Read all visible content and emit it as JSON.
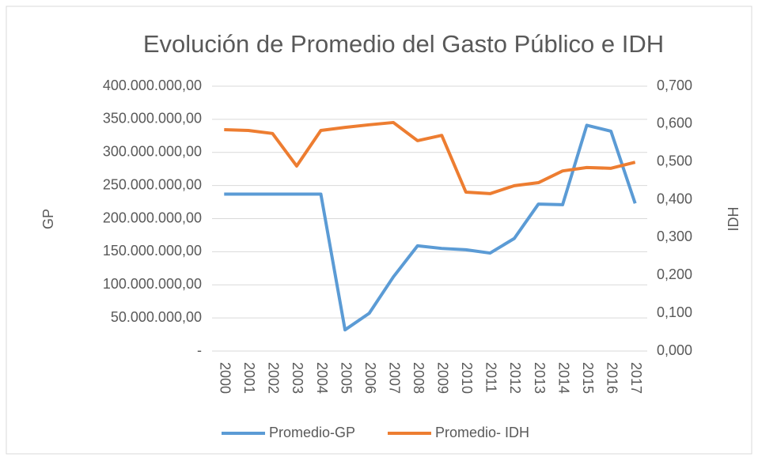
{
  "chart_data": {
    "type": "line",
    "title": "Evolución de Promedio del Gasto Público e IDH",
    "y_label": "GP",
    "y2_label": "IDH",
    "categories": [
      "2000",
      "2001",
      "2002",
      "2003",
      "2004",
      "2005",
      "2006",
      "2007",
      "2008",
      "2009",
      "2010",
      "2011",
      "2012",
      "2013",
      "2014",
      "2015",
      "2016",
      "2017"
    ],
    "series": [
      {
        "name": "Promedio-GP",
        "color": "#5b9bd5",
        "axis": "y",
        "values": [
          237000000,
          237000000,
          237000000,
          237000000,
          237000000,
          32000000,
          57000000,
          112000000,
          159000000,
          155000000,
          153000000,
          148000000,
          170000000,
          222000000,
          221000000,
          341000000,
          332000000,
          223000000
        ]
      },
      {
        "name": "Promedio- IDH",
        "color": "#ed7d31",
        "axis": "y2",
        "values": [
          0.585,
          0.583,
          0.575,
          0.489,
          0.583,
          0.591,
          0.598,
          0.604,
          0.556,
          0.57,
          0.42,
          0.416,
          0.437,
          0.445,
          0.476,
          0.485,
          0.483,
          0.499
        ]
      }
    ],
    "ylim": [
      0,
      400000000
    ],
    "yticks": [
      {
        "value": 0,
        "label": "-"
      },
      {
        "value": 50000000,
        "label": "50.000.000,00"
      },
      {
        "value": 100000000,
        "label": "100.000.000,00"
      },
      {
        "value": 150000000,
        "label": "150.000.000,00"
      },
      {
        "value": 200000000,
        "label": "200.000.000,00"
      },
      {
        "value": 250000000,
        "label": "250.000.000,00"
      },
      {
        "value": 300000000,
        "label": "300.000.000,00"
      },
      {
        "value": 350000000,
        "label": "350.000.000,00"
      },
      {
        "value": 400000000,
        "label": "400.000.000,00"
      }
    ],
    "y2lim": [
      0,
      0.7
    ],
    "y2ticks": [
      {
        "value": 0,
        "label": "0,000"
      },
      {
        "value": 0.1,
        "label": "0,100"
      },
      {
        "value": 0.2,
        "label": "0,200"
      },
      {
        "value": 0.3,
        "label": "0,300"
      },
      {
        "value": 0.4,
        "label": "0,400"
      },
      {
        "value": 0.5,
        "label": "0,500"
      },
      {
        "value": 0.6,
        "label": "0,600"
      },
      {
        "value": 0.7,
        "label": "0,700"
      }
    ],
    "grid": true,
    "legend": "bottom"
  }
}
